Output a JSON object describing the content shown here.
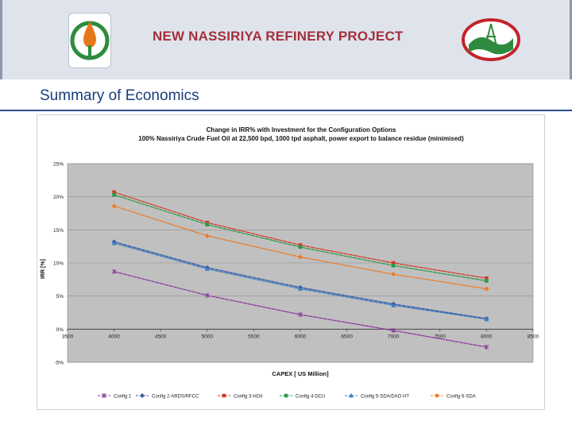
{
  "header": {
    "title": "NEW NASSIRIYA REFINERY PROJECT"
  },
  "section": {
    "title": "Summary of Economics"
  },
  "icons": {
    "left_logo": "oil-drop-logo",
    "right_logo": "refinery-tower-logo"
  },
  "colors": {
    "title_red": "#a2303a",
    "section_blue": "#1a3d7c",
    "plot_bg": "#c0c0c0"
  },
  "chart_data": {
    "type": "line",
    "title": "Change in IRR% with Investment for the Configuration Options",
    "subtitle": "100% Nassiriya Crude Fuel Oil at 22,500 bpd, 1000 tpd asphalt, power export to balance residue (minimised)",
    "xlabel": "CAPEX [ US Million]",
    "ylabel": "IRR [%]",
    "xlim": [
      3500,
      8500
    ],
    "ylim": [
      -5,
      25
    ],
    "x_ticks": [
      "3500",
      "4000",
      "4500",
      "5000",
      "5500",
      "6000",
      "6500",
      "7000",
      "7500",
      "8000",
      "8500"
    ],
    "y_ticks": [
      "-5%",
      "0%",
      "5%",
      "10%",
      "15%",
      "20%",
      "25%"
    ],
    "grid": true,
    "legend_position": "bottom",
    "x": [
      4000,
      5000,
      6000,
      7000,
      8000
    ],
    "series": [
      {
        "name": "Config 1",
        "color": "#8b3a9e",
        "marker": "star",
        "values": [
          8.7,
          5.1,
          2.2,
          -0.2,
          -2.7
        ]
      },
      {
        "name": "Config 2-ARDS/RFCC",
        "color": "#3558a6",
        "marker": "diamond",
        "values": [
          13.2,
          9.3,
          6.3,
          3.8,
          1.6
        ]
      },
      {
        "name": "Config 3-HOil",
        "color": "#d23a2a",
        "marker": "square",
        "values": [
          20.7,
          16.1,
          12.7,
          10.0,
          7.7
        ]
      },
      {
        "name": "Config 4-DCU",
        "color": "#2d9a4a",
        "marker": "square",
        "values": [
          20.3,
          15.8,
          12.4,
          9.6,
          7.3
        ]
      },
      {
        "name": "Config 5-SDA/DAO HT",
        "color": "#3a7ebf",
        "marker": "triangle",
        "values": [
          13.0,
          9.1,
          6.1,
          3.6,
          1.5
        ]
      },
      {
        "name": "Config 6-SDA",
        "color": "#ee7a22",
        "marker": "diamond",
        "values": [
          18.6,
          14.1,
          10.9,
          8.3,
          6.1
        ]
      }
    ]
  }
}
